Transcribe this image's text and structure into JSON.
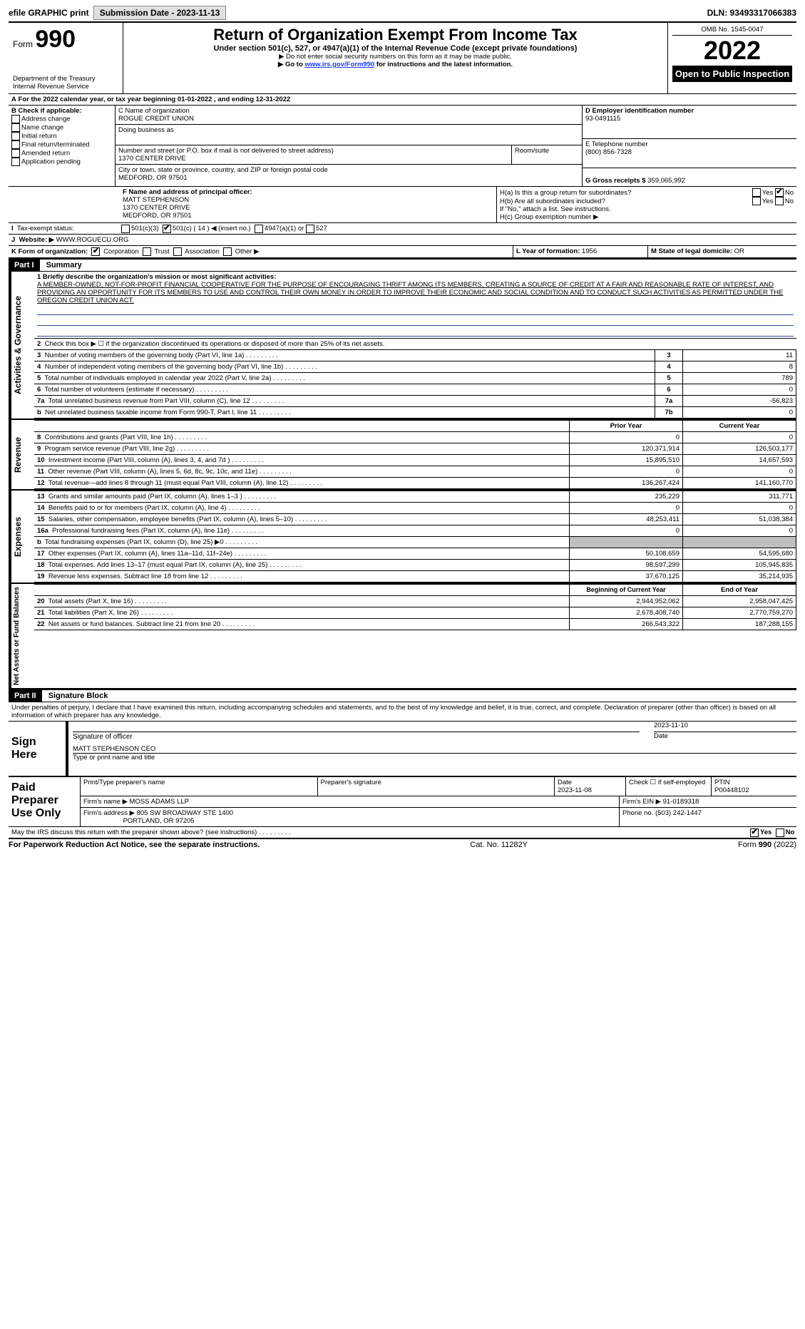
{
  "topbar": {
    "efile": "efile GRAPHIC print",
    "submission_label": "Submission Date - 2023-11-13",
    "dln_label": "DLN: 93493317066383"
  },
  "header": {
    "form_label": "Form",
    "form_num": "990",
    "dept": "Department of the Treasury",
    "irs": "Internal Revenue Service",
    "title": "Return of Organization Exempt From Income Tax",
    "sub1": "Under section 501(c), 527, or 4947(a)(1) of the Internal Revenue Code (except private foundations)",
    "sub2": "▶ Do not enter social security numbers on this form as it may be made public.",
    "sub3_pre": "▶ Go to ",
    "sub3_link": "www.irs.gov/Form990",
    "sub3_post": " for instructions and the latest information.",
    "omb": "OMB No. 1545-0047",
    "year": "2022",
    "open": "Open to Public Inspection"
  },
  "A": {
    "line": "For the 2022 calendar year, or tax year beginning 01-01-2022    , and ending 12-31-2022"
  },
  "B": {
    "label": "B Check if applicable:",
    "opts": [
      "Address change",
      "Name change",
      "Initial return",
      "Final return/terminated",
      "Amended return",
      "Application pending"
    ]
  },
  "C": {
    "name_label": "C Name of organization",
    "name": "ROGUE CREDIT UNION",
    "dba_label": "Doing business as",
    "street_label": "Number and street (or P.O. box if mail is not delivered to street address)",
    "room_label": "Room/suite",
    "street": "1370 CENTER DRIVE",
    "city_label": "City or town, state or province, country, and ZIP or foreign postal code",
    "city": "MEDFORD, OR  97501"
  },
  "D": {
    "label": "D Employer identification number",
    "val": "93-0491115"
  },
  "E": {
    "label": "E Telephone number",
    "val": "(800) 856-7328"
  },
  "G": {
    "label": "G Gross receipts $",
    "val": "359,065,992"
  },
  "F": {
    "label": "F  Name and address of principal officer:",
    "name": "MATT STEPHENSON",
    "street": "1370 CENTER DRIVE",
    "city": "MEDFORD, OR  97501"
  },
  "H": {
    "a": "H(a)  Is this a group return for subordinates?",
    "b": "H(b)  Are all subordinates included?",
    "note": "If \"No,\" attach a list. See instructions.",
    "c": "H(c)  Group exemption number ▶",
    "yes": "Yes",
    "no": "No"
  },
  "I": {
    "label": "Tax-exempt status:",
    "o1": "501(c)(3)",
    "o2": "501(c) ( 14 ) ◀ (insert no.)",
    "o3": "4947(a)(1) or",
    "o4": "527"
  },
  "J": {
    "label": "Website: ▶",
    "val": "WWW.ROGUECU.ORG"
  },
  "K": {
    "label": "K Form of organization:",
    "o1": "Corporation",
    "o2": "Trust",
    "o3": "Association",
    "o4": "Other ▶"
  },
  "L": {
    "label": "L Year of formation:",
    "val": "1956"
  },
  "M": {
    "label": "M State of legal domicile:",
    "val": "OR"
  },
  "part1": {
    "header": "Part I",
    "title": "Summary"
  },
  "summary": {
    "side_ag": "Activities & Governance",
    "side_rev": "Revenue",
    "side_exp": "Expenses",
    "side_na": "Net Assets or Fund Balances",
    "l1_label": "1  Briefly describe the organization's mission or most significant activities:",
    "l1_text": "A MEMBER-OWNED, NOT-FOR-PROFIT FINANCIAL COOPERATIVE FOR THE PURPOSE OF ENCOURAGING THRIFT AMONG ITS MEMBERS, CREATING A SOURCE OF CREDIT AT A FAIR AND REASONABLE RATE OF INTEREST, AND PROVIDING AN OPPORTUNITY FOR ITS MEMBERS TO USE AND CONTROL THEIR OWN MONEY IN ORDER TO IMPROVE THEIR ECONOMIC AND SOCIAL CONDITION AND TO CONDUCT SUCH ACTIVITIES AS PERMITTED UNDER THE OREGON CREDIT UNION ACT.",
    "l2": "Check this box ▶ ☐  if the organization discontinued its operations or disposed of more than 25% of its net assets.",
    "rows_ag": [
      {
        "n": "3",
        "label": "Number of voting members of the governing body (Part VI, line 1a)",
        "box": "3",
        "val": "11"
      },
      {
        "n": "4",
        "label": "Number of independent voting members of the governing body (Part VI, line 1b)",
        "box": "4",
        "val": "8"
      },
      {
        "n": "5",
        "label": "Total number of individuals employed in calendar year 2022 (Part V, line 2a)",
        "box": "5",
        "val": "789"
      },
      {
        "n": "6",
        "label": "Total number of volunteers (estimate if necessary)",
        "box": "6",
        "val": "0"
      },
      {
        "n": "7a",
        "label": "Total unrelated business revenue from Part VIII, column (C), line 12",
        "box": "7a",
        "val": "-56,823"
      },
      {
        "n": "b",
        "label": "Net unrelated business taxable income from Form 990-T, Part I, line 11",
        "box": "7b",
        "val": "0"
      }
    ],
    "col_prior": "Prior Year",
    "col_curr": "Current Year",
    "rows_rev": [
      {
        "n": "8",
        "label": "Contributions and grants (Part VIII, line 1h)",
        "p": "0",
        "c": "0"
      },
      {
        "n": "9",
        "label": "Program service revenue (Part VIII, line 2g)",
        "p": "120,371,914",
        "c": "126,503,177"
      },
      {
        "n": "10",
        "label": "Investment income (Part VIII, column (A), lines 3, 4, and 7d )",
        "p": "15,895,510",
        "c": "14,657,593"
      },
      {
        "n": "11",
        "label": "Other revenue (Part VIII, column (A), lines 5, 6d, 8c, 9c, 10c, and 11e)",
        "p": "0",
        "c": "0"
      },
      {
        "n": "12",
        "label": "Total revenue—add lines 8 through 11 (must equal Part VIII, column (A), line 12)",
        "p": "136,267,424",
        "c": "141,160,770"
      }
    ],
    "rows_exp": [
      {
        "n": "13",
        "label": "Grants and similar amounts paid (Part IX, column (A), lines 1–3 )",
        "p": "235,229",
        "c": "311,771"
      },
      {
        "n": "14",
        "label": "Benefits paid to or for members (Part IX, column (A), line 4)",
        "p": "0",
        "c": "0"
      },
      {
        "n": "15",
        "label": "Salaries, other compensation, employee benefits (Part IX, column (A), lines 5–10)",
        "p": "48,253,411",
        "c": "51,038,384"
      },
      {
        "n": "16a",
        "label": "Professional fundraising fees (Part IX, column (A), line 11e)",
        "p": "0",
        "c": "0"
      },
      {
        "n": "b",
        "label": "Total fundraising expenses (Part IX, column (D), line 25) ▶0",
        "p": "",
        "c": "",
        "grey": true
      },
      {
        "n": "17",
        "label": "Other expenses (Part IX, column (A), lines 11a–11d, 11f–24e)",
        "p": "50,108,659",
        "c": "54,595,680"
      },
      {
        "n": "18",
        "label": "Total expenses. Add lines 13–17 (must equal Part IX, column (A), line 25)",
        "p": "98,597,299",
        "c": "105,945,835"
      },
      {
        "n": "19",
        "label": "Revenue less expenses. Subtract line 18 from line 12",
        "p": "37,670,125",
        "c": "35,214,935"
      }
    ],
    "col_begin": "Beginning of Current Year",
    "col_end": "End of Year",
    "rows_na": [
      {
        "n": "20",
        "label": "Total assets (Part X, line 16)",
        "p": "2,944,952,062",
        "c": "2,958,047,425"
      },
      {
        "n": "21",
        "label": "Total liabilities (Part X, line 26)",
        "p": "2,678,408,740",
        "c": "2,770,759,270"
      },
      {
        "n": "22",
        "label": "Net assets or fund balances. Subtract line 21 from line 20",
        "p": "266,543,322",
        "c": "187,288,155"
      }
    ]
  },
  "part2": {
    "header": "Part II",
    "title": "Signature Block",
    "decl": "Under penalties of perjury, I declare that I have examined this return, including accompanying schedules and statements, and to the best of my knowledge and belief, it is true, correct, and complete. Declaration of preparer (other than officer) is based on all information of which preparer has any knowledge."
  },
  "sign": {
    "label": "Sign Here",
    "sig_of": "Signature of officer",
    "date": "2023-11-10",
    "date_label": "Date",
    "name": "MATT STEPHENSON  CEO",
    "name_label": "Type or print name and title"
  },
  "paid": {
    "label": "Paid Preparer Use Only",
    "print_label": "Print/Type preparer's name",
    "sig_label": "Preparer's signature",
    "date_label": "Date",
    "date": "2023-11-08",
    "check_label": "Check ☐ if self-employed",
    "ptin_label": "PTIN",
    "ptin": "P00448102",
    "firm_label": "Firm's name    ▶",
    "firm": "MOSS ADAMS LLP",
    "ein_label": "Firm's EIN ▶",
    "ein": "91-0189318",
    "addr_label": "Firm's address ▶",
    "addr1": "805 SW BROADWAY STE 1400",
    "addr2": "PORTLAND, OR  97205",
    "phone_label": "Phone no.",
    "phone": "(503) 242-1447"
  },
  "discuss": {
    "label": "May the IRS discuss this return with the preparer shown above? (see instructions)",
    "yes": "Yes",
    "no": "No"
  },
  "footer": {
    "left": "For Paperwork Reduction Act Notice, see the separate instructions.",
    "mid": "Cat. No. 11282Y",
    "right_pre": "Form ",
    "right_bold": "990",
    "right_post": " (2022)"
  }
}
